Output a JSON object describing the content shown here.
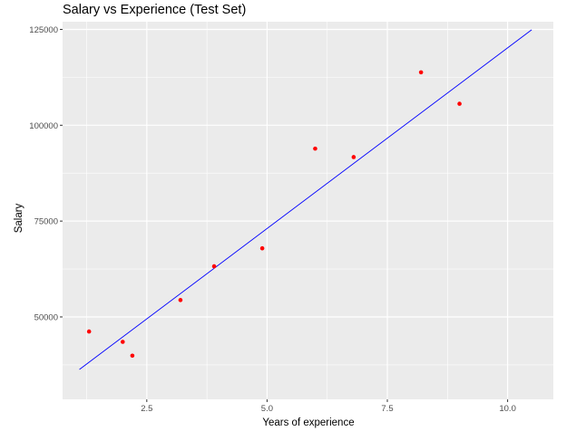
{
  "chart_data": {
    "type": "scatter",
    "title": "Salary vs Experience (Test Set)",
    "xlabel": "Years of experience",
    "ylabel": "Salary",
    "xlim": [
      0.75,
      10.95
    ],
    "ylim": [
      28500,
      127000
    ],
    "x_ticks": [
      2.5,
      5.0,
      7.5,
      10.0
    ],
    "x_tick_labels": [
      "2.5",
      "5.0",
      "7.5",
      "10.0"
    ],
    "y_ticks": [
      50000,
      75000,
      100000,
      125000
    ],
    "y_tick_labels": [
      "50000",
      "75000",
      "100000",
      "125000"
    ],
    "grid": true,
    "background": "#ebebeb",
    "grid_color": "#ffffff",
    "points": {
      "color": "#ff0000",
      "x": [
        1.3,
        2.0,
        2.2,
        3.2,
        3.9,
        4.9,
        6.0,
        6.8,
        8.2,
        9.0
      ],
      "y": [
        46200,
        43500,
        39900,
        54400,
        63200,
        67900,
        93900,
        91700,
        113800,
        105600
      ]
    },
    "regression_line": {
      "color": "#0000ff",
      "x": [
        1.1,
        10.5
      ],
      "y": [
        36300,
        124900
      ]
    }
  }
}
